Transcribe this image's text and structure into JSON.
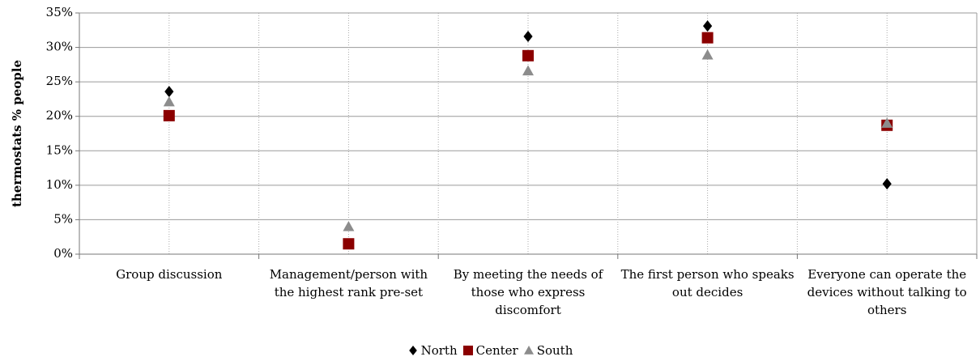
{
  "chart_data": {
    "type": "scatter",
    "y_label": "thermostats % people",
    "categories": [
      "Group discussion",
      "Management/person with the highest rank pre-set",
      "By meeting the needs of those who express discomfort",
      "The first person who speaks out decides",
      "Everyone can operate the devices without talking to others"
    ],
    "series": [
      {
        "name": "North",
        "color": "#000000",
        "marker": "diamond",
        "values": [
          23.6,
          null,
          31.6,
          33.1,
          10.2
        ]
      },
      {
        "name": "Center",
        "color": "#8b0000",
        "marker": "square",
        "values": [
          20.1,
          1.5,
          28.8,
          31.4,
          18.7
        ]
      },
      {
        "name": "South",
        "color": "#8c8c8c",
        "marker": "triangle",
        "values": [
          22.1,
          4.0,
          26.6,
          28.9,
          19.0
        ]
      }
    ],
    "ylim": [
      0,
      35
    ],
    "yticks": [
      {
        "value": 0,
        "label": "0%"
      },
      {
        "value": 5,
        "label": "5%"
      },
      {
        "value": 10,
        "label": "10%"
      },
      {
        "value": 15,
        "label": "15%"
      },
      {
        "value": 20,
        "label": "20%"
      },
      {
        "value": 25,
        "label": "25%"
      },
      {
        "value": 30,
        "label": "30%"
      },
      {
        "value": 35,
        "label": "35%"
      }
    ],
    "grid": true,
    "legend": "bottom"
  }
}
